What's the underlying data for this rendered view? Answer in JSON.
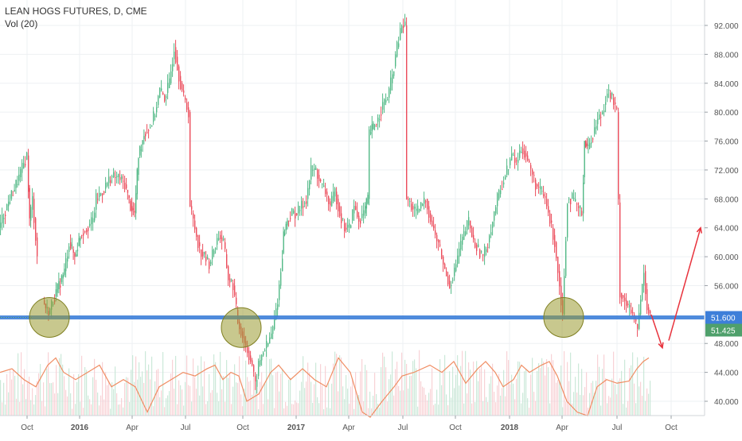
{
  "header": {
    "symbol": "LEAN HOGS FUTURES, D, CME",
    "volume_label": "Vol (20)"
  },
  "chart_data": {
    "type": "candlestick",
    "title": "LEAN HOGS FUTURES, D, CME",
    "volume_indicator": "Vol (20)",
    "y_ticks": [
      "92.000",
      "88.000",
      "84.000",
      "80.000",
      "76.000",
      "72.000",
      "68.000",
      "64.000",
      "60.000",
      "56.000",
      "51.600",
      "48.000",
      "44.000",
      "40.000"
    ],
    "y_tick_values": [
      92,
      88,
      84,
      80,
      76,
      72,
      68,
      64,
      60,
      56,
      51.6,
      48,
      44,
      40
    ],
    "x_ticks": [
      "Oct",
      "2016",
      "Apr",
      "Jul",
      "Oct",
      "2017",
      "Apr",
      "Jul",
      "Oct",
      "2018",
      "Apr",
      "Jul",
      "Oct"
    ],
    "ylim": [
      37.6,
      94
    ],
    "grid": true,
    "support_level": 51.6,
    "last_price_label": "51.600",
    "current_price_label": "51.425",
    "colors": {
      "up": "#53b987",
      "down": "#eb4d5c",
      "support_line": "#3d7fd9",
      "volume_ma": "#f08d63",
      "highlight_fill": "#9b9b32",
      "arrow": "#e8323c",
      "price_tag": "#3d7fd9",
      "current_tag": "#4fa06b"
    },
    "price_path": [
      [
        0,
        64
      ],
      [
        10,
        67
      ],
      [
        25,
        71
      ],
      [
        35,
        74
      ],
      [
        38,
        65
      ],
      [
        42,
        68
      ],
      [
        48,
        60
      ],
      [
        55,
        54
      ],
      [
        62,
        52
      ],
      [
        68,
        54
      ],
      [
        75,
        56
      ],
      [
        82,
        58
      ],
      [
        88,
        62
      ],
      [
        95,
        60
      ],
      [
        102,
        63
      ],
      [
        110,
        64
      ],
      [
        118,
        65
      ],
      [
        122,
        68
      ],
      [
        130,
        69
      ],
      [
        140,
        71
      ],
      [
        150,
        71
      ],
      [
        158,
        70
      ],
      [
        165,
        67
      ],
      [
        170,
        66
      ],
      [
        175,
        74
      ],
      [
        182,
        77
      ],
      [
        190,
        78
      ],
      [
        196,
        80
      ],
      [
        202,
        83
      ],
      [
        208,
        82
      ],
      [
        214,
        84
      ],
      [
        220,
        89
      ],
      [
        226,
        85
      ],
      [
        232,
        82
      ],
      [
        238,
        80
      ],
      [
        240,
        67
      ],
      [
        246,
        64
      ],
      [
        252,
        61
      ],
      [
        258,
        60
      ],
      [
        264,
        59
      ],
      [
        270,
        61
      ],
      [
        276,
        63
      ],
      [
        282,
        62
      ],
      [
        288,
        57
      ],
      [
        294,
        56
      ],
      [
        300,
        51
      ],
      [
        306,
        49
      ],
      [
        312,
        47
      ],
      [
        318,
        45
      ],
      [
        322,
        42
      ],
      [
        326,
        45
      ],
      [
        332,
        47
      ],
      [
        338,
        48
      ],
      [
        344,
        50
      ],
      [
        350,
        54
      ],
      [
        354,
        58
      ],
      [
        357,
        63
      ],
      [
        362,
        65
      ],
      [
        368,
        66
      ],
      [
        374,
        66
      ],
      [
        380,
        67
      ],
      [
        386,
        68
      ],
      [
        392,
        72
      ],
      [
        398,
        72
      ],
      [
        404,
        70
      ],
      [
        410,
        69
      ],
      [
        416,
        67
      ],
      [
        422,
        69
      ],
      [
        428,
        66
      ],
      [
        434,
        64
      ],
      [
        440,
        64
      ],
      [
        446,
        67
      ],
      [
        452,
        65
      ],
      [
        458,
        66
      ],
      [
        463,
        68
      ],
      [
        465,
        77
      ],
      [
        470,
        78
      ],
      [
        476,
        79
      ],
      [
        482,
        81
      ],
      [
        488,
        82
      ],
      [
        494,
        85
      ],
      [
        500,
        89
      ],
      [
        506,
        92
      ],
      [
        510,
        92
      ],
      [
        512,
        68
      ],
      [
        518,
        67
      ],
      [
        524,
        66
      ],
      [
        530,
        67
      ],
      [
        536,
        68
      ],
      [
        542,
        65
      ],
      [
        548,
        63
      ],
      [
        554,
        61
      ],
      [
        560,
        58
      ],
      [
        566,
        56
      ],
      [
        572,
        58
      ],
      [
        578,
        61
      ],
      [
        584,
        63
      ],
      [
        590,
        65
      ],
      [
        596,
        62
      ],
      [
        602,
        61
      ],
      [
        608,
        60
      ],
      [
        614,
        62
      ],
      [
        620,
        65
      ],
      [
        626,
        68
      ],
      [
        632,
        70
      ],
      [
        638,
        72
      ],
      [
        644,
        74
      ],
      [
        650,
        73
      ],
      [
        656,
        75
      ],
      [
        662,
        74
      ],
      [
        668,
        72
      ],
      [
        674,
        70
      ],
      [
        680,
        69
      ],
      [
        686,
        68
      ],
      [
        692,
        65
      ],
      [
        698,
        62
      ],
      [
        704,
        56
      ],
      [
        708,
        52
      ],
      [
        714,
        68
      ],
      [
        720,
        68
      ],
      [
        726,
        67
      ],
      [
        732,
        66
      ],
      [
        735,
        76
      ],
      [
        740,
        75
      ],
      [
        746,
        77
      ],
      [
        752,
        79
      ],
      [
        758,
        80
      ],
      [
        764,
        83
      ],
      [
        770,
        82
      ],
      [
        776,
        80
      ],
      [
        780,
        55
      ],
      [
        786,
        54
      ],
      [
        790,
        53
      ],
      [
        796,
        52
      ],
      [
        802,
        50
      ],
      [
        806,
        54
      ],
      [
        810,
        58
      ],
      [
        814,
        53
      ],
      [
        818,
        52
      ]
    ],
    "volume_ma_path": [
      [
        0,
        44
      ],
      [
        15,
        44.5
      ],
      [
        30,
        43
      ],
      [
        45,
        42
      ],
      [
        60,
        45
      ],
      [
        70,
        46
      ],
      [
        80,
        44
      ],
      [
        95,
        43
      ],
      [
        110,
        44
      ],
      [
        125,
        45
      ],
      [
        140,
        42
      ],
      [
        155,
        43
      ],
      [
        170,
        42
      ],
      [
        185,
        38.5
      ],
      [
        200,
        42
      ],
      [
        215,
        43
      ],
      [
        230,
        44
      ],
      [
        245,
        43.5
      ],
      [
        260,
        44.5
      ],
      [
        270,
        45
      ],
      [
        280,
        43
      ],
      [
        290,
        44
      ],
      [
        300,
        43.5
      ],
      [
        310,
        40
      ],
      [
        325,
        41
      ],
      [
        340,
        44
      ],
      [
        350,
        45
      ],
      [
        365,
        43
      ],
      [
        380,
        44.5
      ],
      [
        395,
        43
      ],
      [
        410,
        42
      ],
      [
        425,
        46
      ],
      [
        440,
        44
      ],
      [
        455,
        38.5
      ],
      [
        465,
        37.8
      ],
      [
        480,
        40
      ],
      [
        495,
        42
      ],
      [
        505,
        43.5
      ],
      [
        520,
        44
      ],
      [
        540,
        45
      ],
      [
        555,
        44
      ],
      [
        570,
        45.5
      ],
      [
        585,
        42.5
      ],
      [
        600,
        44.5
      ],
      [
        610,
        45.5
      ],
      [
        622,
        44
      ],
      [
        632,
        42
      ],
      [
        645,
        43
      ],
      [
        655,
        45
      ],
      [
        665,
        44
      ],
      [
        680,
        45
      ],
      [
        690,
        45.5
      ],
      [
        700,
        43.5
      ],
      [
        712,
        40
      ],
      [
        725,
        38.5
      ],
      [
        738,
        38
      ],
      [
        750,
        42
      ],
      [
        762,
        43
      ],
      [
        775,
        42.5
      ],
      [
        790,
        42.8
      ],
      [
        800,
        44.5
      ],
      [
        808,
        45.5
      ],
      [
        815,
        46
      ]
    ],
    "highlights": [
      {
        "x": 62,
        "y": 51.6
      },
      {
        "x": 303,
        "y": 50.2
      },
      {
        "x": 708,
        "y": 51.6
      }
    ],
    "arrows": [
      {
        "from": [
          818,
          52
        ],
        "to": [
          832,
          47.4
        ]
      },
      {
        "from": [
          840,
          48.4
        ],
        "to": [
          880,
          64
        ]
      }
    ]
  }
}
